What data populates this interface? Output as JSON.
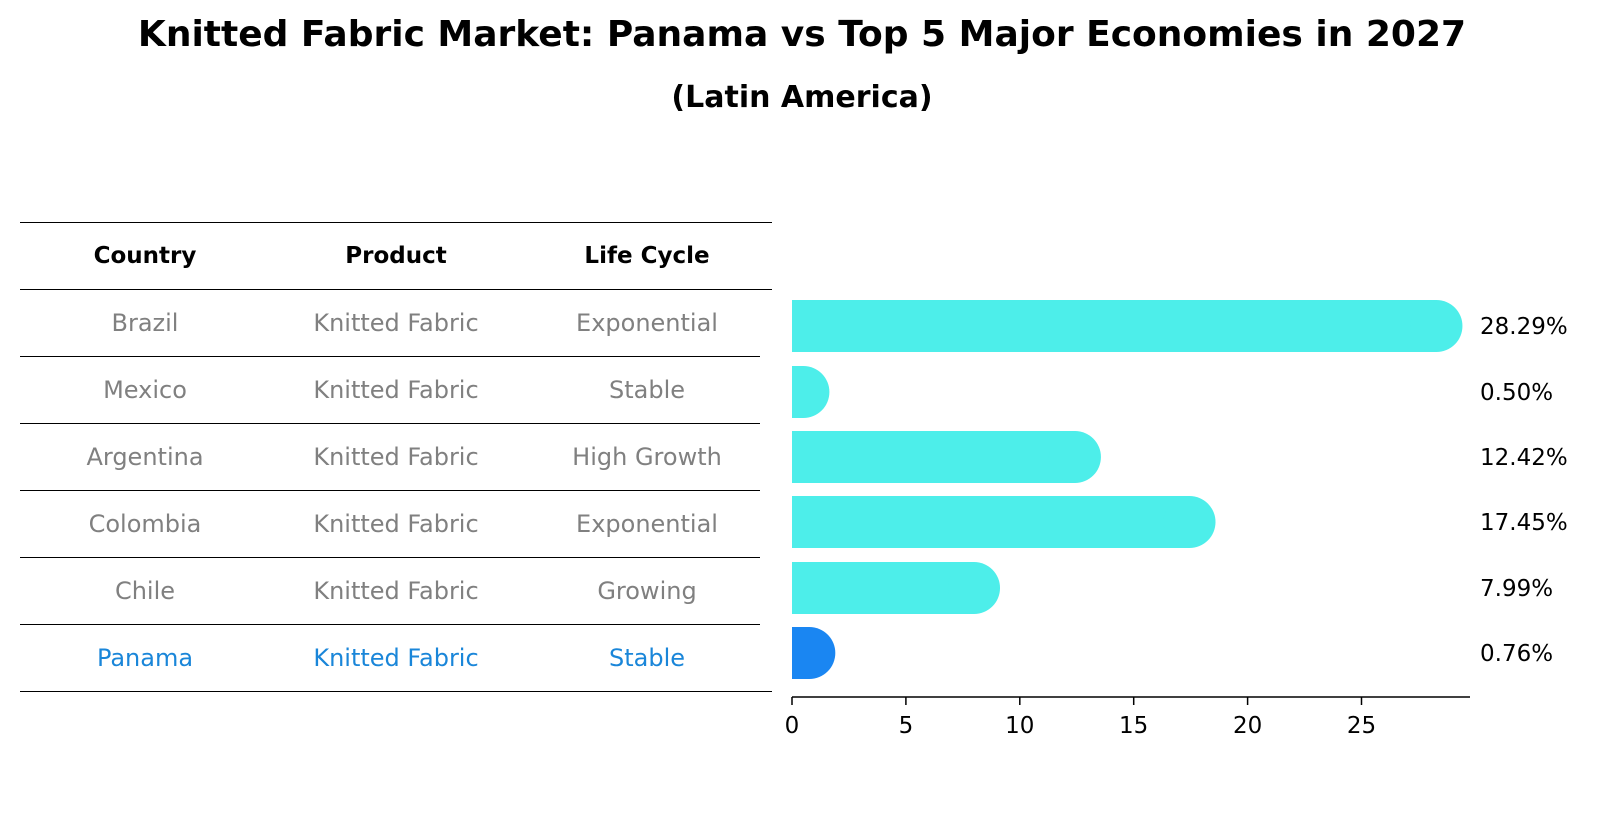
{
  "title": "Knitted Fabric Market: Panama vs Top 5 Major Economies in 2027",
  "subtitle": "(Latin America)",
  "table": {
    "headers": [
      "Country",
      "Product",
      "Life Cycle"
    ],
    "rows": [
      {
        "country": "Brazil",
        "product": "Knitted Fabric",
        "life_cycle": "Exponential"
      },
      {
        "country": "Mexico",
        "product": "Knitted Fabric",
        "life_cycle": "Stable"
      },
      {
        "country": "Argentina",
        "product": "Knitted Fabric",
        "life_cycle": "High Growth"
      },
      {
        "country": "Colombia",
        "product": "Knitted Fabric",
        "life_cycle": "Exponential"
      },
      {
        "country": "Chile",
        "product": "Knitted Fabric",
        "life_cycle": "Growing"
      },
      {
        "country": "Panama",
        "product": "Knitted Fabric",
        "life_cycle": "Stable"
      }
    ],
    "highlight_row": "Panama"
  },
  "colors": {
    "bar": "#4deeea",
    "highlight": "#1a86f2",
    "highlight_text": "#1a86d9",
    "text_muted": "#808080"
  },
  "chart_data": {
    "type": "bar",
    "orientation": "horizontal",
    "categories": [
      "Brazil",
      "Mexico",
      "Argentina",
      "Colombia",
      "Chile",
      "Panama"
    ],
    "values": [
      28.29,
      0.5,
      12.42,
      17.45,
      7.99,
      0.76
    ],
    "value_labels": [
      "28.29%",
      "0.50%",
      "12.42%",
      "17.45%",
      "7.99%",
      "0.76%"
    ],
    "xticks": [
      0,
      5,
      10,
      15,
      20,
      25
    ],
    "xlim": [
      0,
      29.7
    ],
    "highlight": "Panama",
    "grid": false
  }
}
